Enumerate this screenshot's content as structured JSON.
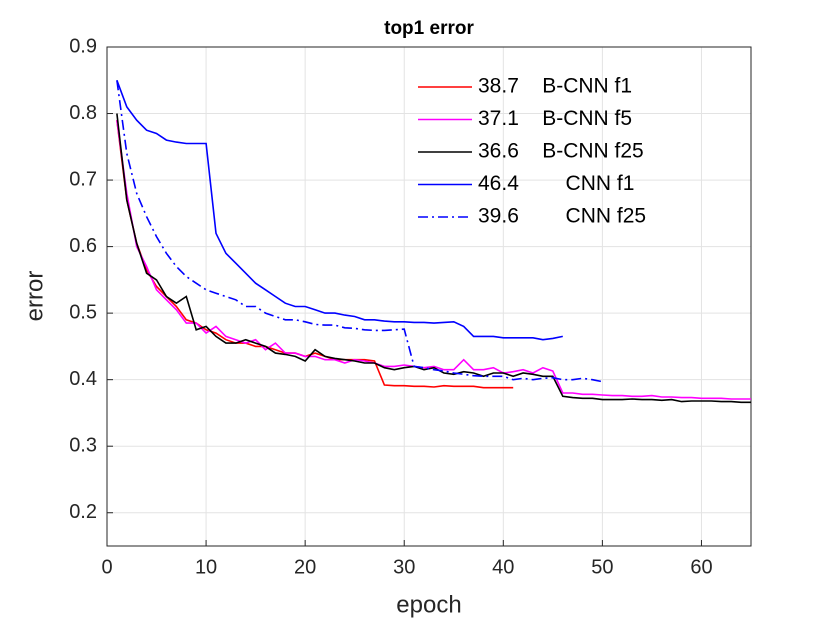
{
  "chart_data": {
    "type": "line",
    "title": "top1 error",
    "xlabel": "epoch",
    "ylabel": "error",
    "xlim": [
      0,
      65
    ],
    "xticks": [
      0,
      10,
      20,
      30,
      40,
      50,
      60
    ],
    "ylim": [
      0.15,
      0.9
    ],
    "yticks": [
      0.2,
      0.3,
      0.4,
      0.5,
      0.6,
      0.7,
      0.8,
      0.9
    ],
    "grid": true,
    "legend": "northeast",
    "series": [
      {
        "name": "38.7    B-CNN f1",
        "color": "#ff0000",
        "linestyle": "-",
        "x": [
          1,
          2,
          3,
          4,
          5,
          6,
          7,
          8,
          9,
          10,
          11,
          12,
          13,
          14,
          15,
          16,
          17,
          18,
          19,
          20,
          21,
          22,
          23,
          24,
          25,
          26,
          27,
          28,
          29,
          30,
          31,
          32,
          33,
          34,
          35,
          36,
          37,
          38,
          39,
          40,
          41
        ],
        "values": [
          0.79,
          0.67,
          0.605,
          0.565,
          0.54,
          0.525,
          0.51,
          0.49,
          0.485,
          0.475,
          0.47,
          0.46,
          0.455,
          0.455,
          0.45,
          0.45,
          0.445,
          0.44,
          0.44,
          0.435,
          0.44,
          0.435,
          0.43,
          0.43,
          0.43,
          0.43,
          0.428,
          0.392,
          0.391,
          0.391,
          0.39,
          0.39,
          0.389,
          0.391,
          0.39,
          0.39,
          0.39,
          0.388,
          0.388,
          0.388,
          0.388
        ]
      },
      {
        "name": "37.1    B-CNN f5",
        "color": "#ff00ff",
        "linestyle": "-",
        "x": [
          1,
          2,
          3,
          4,
          5,
          6,
          7,
          8,
          9,
          10,
          11,
          12,
          13,
          14,
          15,
          16,
          17,
          18,
          19,
          20,
          21,
          22,
          23,
          24,
          25,
          26,
          27,
          28,
          29,
          30,
          31,
          32,
          33,
          34,
          35,
          36,
          37,
          38,
          39,
          40,
          41,
          42,
          43,
          44,
          45,
          46,
          47,
          48,
          49,
          50,
          51,
          52,
          53,
          54,
          55,
          56,
          57,
          58,
          59,
          60,
          61,
          62,
          63,
          64,
          65
        ],
        "values": [
          0.79,
          0.68,
          0.6,
          0.57,
          0.535,
          0.52,
          0.505,
          0.485,
          0.485,
          0.47,
          0.48,
          0.465,
          0.46,
          0.455,
          0.46,
          0.445,
          0.455,
          0.44,
          0.44,
          0.435,
          0.435,
          0.43,
          0.43,
          0.425,
          0.43,
          0.428,
          0.425,
          0.42,
          0.42,
          0.422,
          0.42,
          0.418,
          0.42,
          0.415,
          0.415,
          0.43,
          0.415,
          0.415,
          0.418,
          0.41,
          0.412,
          0.415,
          0.41,
          0.418,
          0.413,
          0.38,
          0.38,
          0.378,
          0.378,
          0.377,
          0.376,
          0.376,
          0.375,
          0.375,
          0.376,
          0.374,
          0.374,
          0.373,
          0.373,
          0.372,
          0.372,
          0.372,
          0.371,
          0.371,
          0.371
        ]
      },
      {
        "name": "36.6    B-CNN f25",
        "color": "#000000",
        "linestyle": "-",
        "x": [
          1,
          2,
          3,
          4,
          5,
          6,
          7,
          8,
          9,
          10,
          11,
          12,
          13,
          14,
          15,
          16,
          17,
          18,
          19,
          20,
          21,
          22,
          23,
          24,
          25,
          26,
          27,
          28,
          29,
          30,
          31,
          32,
          33,
          34,
          35,
          36,
          37,
          38,
          39,
          40,
          41,
          42,
          43,
          44,
          45,
          46,
          47,
          48,
          49,
          50,
          51,
          52,
          53,
          54,
          55,
          56,
          57,
          58,
          59,
          60,
          61,
          62,
          63,
          64,
          65
        ],
        "values": [
          0.8,
          0.67,
          0.605,
          0.56,
          0.55,
          0.525,
          0.515,
          0.525,
          0.475,
          0.48,
          0.465,
          0.455,
          0.455,
          0.46,
          0.455,
          0.45,
          0.44,
          0.438,
          0.435,
          0.428,
          0.445,
          0.435,
          0.432,
          0.43,
          0.428,
          0.425,
          0.425,
          0.418,
          0.415,
          0.418,
          0.42,
          0.415,
          0.418,
          0.41,
          0.408,
          0.412,
          0.41,
          0.405,
          0.41,
          0.41,
          0.405,
          0.41,
          0.408,
          0.405,
          0.405,
          0.375,
          0.373,
          0.372,
          0.372,
          0.37,
          0.37,
          0.37,
          0.371,
          0.37,
          0.37,
          0.369,
          0.37,
          0.367,
          0.368,
          0.368,
          0.368,
          0.367,
          0.367,
          0.366,
          0.366
        ]
      },
      {
        "name": "46.4        CNN f1",
        "color": "#0000ff",
        "linestyle": "-",
        "x": [
          1,
          2,
          3,
          4,
          5,
          6,
          7,
          8,
          9,
          10,
          11,
          12,
          13,
          14,
          15,
          16,
          17,
          18,
          19,
          20,
          21,
          22,
          23,
          24,
          25,
          26,
          27,
          28,
          29,
          30,
          31,
          32,
          33,
          34,
          35,
          36,
          37,
          38,
          39,
          40,
          41,
          42,
          43,
          44,
          45,
          46
        ],
        "values": [
          0.85,
          0.81,
          0.79,
          0.775,
          0.77,
          0.76,
          0.757,
          0.755,
          0.755,
          0.755,
          0.62,
          0.59,
          0.575,
          0.56,
          0.545,
          0.535,
          0.525,
          0.515,
          0.51,
          0.51,
          0.505,
          0.5,
          0.5,
          0.497,
          0.495,
          0.49,
          0.49,
          0.488,
          0.487,
          0.487,
          0.486,
          0.486,
          0.485,
          0.486,
          0.487,
          0.48,
          0.465,
          0.465,
          0.465,
          0.463,
          0.463,
          0.463,
          0.463,
          0.46,
          0.462,
          0.465
        ]
      },
      {
        "name": "39.6        CNN f25",
        "color": "#0000ff",
        "linestyle": "-.",
        "x": [
          1,
          2,
          3,
          4,
          5,
          6,
          7,
          8,
          9,
          10,
          11,
          12,
          13,
          14,
          15,
          16,
          17,
          18,
          19,
          20,
          21,
          22,
          23,
          24,
          25,
          26,
          27,
          28,
          29,
          30,
          31,
          32,
          33,
          34,
          35,
          36,
          37,
          38,
          39,
          40,
          41,
          42,
          43,
          44,
          45,
          46,
          47,
          48,
          49,
          50
        ],
        "values": [
          0.85,
          0.74,
          0.68,
          0.645,
          0.615,
          0.59,
          0.57,
          0.555,
          0.545,
          0.535,
          0.53,
          0.525,
          0.52,
          0.51,
          0.51,
          0.5,
          0.495,
          0.49,
          0.49,
          0.487,
          0.483,
          0.482,
          0.482,
          0.478,
          0.477,
          0.475,
          0.474,
          0.474,
          0.475,
          0.476,
          0.42,
          0.418,
          0.415,
          0.413,
          0.41,
          0.408,
          0.406,
          0.405,
          0.405,
          0.405,
          0.4,
          0.402,
          0.4,
          0.402,
          0.403,
          0.4,
          0.4,
          0.402,
          0.4,
          0.397
        ]
      }
    ]
  }
}
